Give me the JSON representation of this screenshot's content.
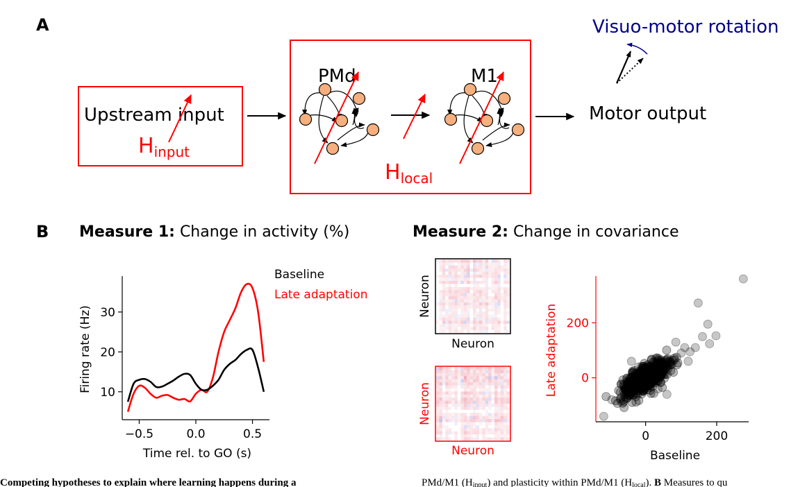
{
  "panel_a": {
    "letter": "A",
    "rotation_label": "Visuo-motor rotation",
    "upstream_label": "Upstream input",
    "h_input": {
      "main": "H",
      "sub": "input"
    },
    "pmd_label": "PMd",
    "m1_label": "M1",
    "h_local": {
      "main": "H",
      "sub": "local"
    },
    "output_label": "Motor output"
  },
  "panel_b": {
    "letter": "B",
    "measure1": {
      "bold": "Measure 1:",
      "text": " Change in activity (%)"
    },
    "measure2": {
      "bold": "Measure 2:",
      "text": " Change in covariance"
    },
    "cov_matrices": {
      "xlabel": "Neuron",
      "ylabel": "Neuron",
      "baseline_color": "#000000",
      "late_color": "#ff0000"
    }
  },
  "chart_data": [
    {
      "type": "line",
      "xlabel": "Time rel. to GO (s)",
      "ylabel": "Firing rate (Hz)",
      "xlim": [
        -0.65,
        0.65
      ],
      "ylim": [
        3,
        39
      ],
      "xticks": [
        -0.5,
        0.0,
        0.5
      ],
      "xtick_labels": [
        "−0.5",
        "0.0",
        "0.5"
      ],
      "yticks": [
        10,
        20,
        30
      ],
      "ytick_labels": [
        "10",
        "20",
        "30"
      ],
      "legend": "top-right",
      "series": [
        {
          "name": "Baseline",
          "color": "#000000",
          "x": [
            -0.6,
            -0.55,
            -0.5,
            -0.45,
            -0.4,
            -0.35,
            -0.3,
            -0.25,
            -0.2,
            -0.15,
            -0.1,
            -0.05,
            0.0,
            0.05,
            0.1,
            0.15,
            0.2,
            0.25,
            0.3,
            0.35,
            0.4,
            0.45,
            0.5,
            0.55,
            0.6
          ],
          "y": [
            7.5,
            12,
            13,
            13.2,
            12.5,
            11.2,
            11.3,
            12,
            12.8,
            13.8,
            14.5,
            14.2,
            12,
            10.5,
            10.5,
            11.5,
            13,
            15.5,
            17,
            18,
            19.5,
            20.5,
            20.5,
            16,
            10
          ]
        },
        {
          "name": "Late adaptation",
          "color": "#ff0000",
          "x": [
            -0.6,
            -0.55,
            -0.5,
            -0.45,
            -0.4,
            -0.35,
            -0.3,
            -0.25,
            -0.2,
            -0.15,
            -0.1,
            -0.05,
            0.0,
            0.05,
            0.1,
            0.15,
            0.2,
            0.25,
            0.3,
            0.35,
            0.4,
            0.45,
            0.5,
            0.55,
            0.6
          ],
          "y": [
            5,
            9.5,
            11.5,
            11,
            9.5,
            8.5,
            9,
            9.2,
            8.5,
            8,
            8.2,
            7.6,
            9.5,
            10.5,
            10,
            13.5,
            20,
            25,
            28,
            31,
            35,
            37,
            36,
            30,
            17.5
          ]
        }
      ]
    },
    {
      "type": "scatter",
      "xlabel": "Baseline",
      "ylabel": "Late adaptation",
      "xlim": [
        -140,
        290
      ],
      "ylim": [
        -160,
        370
      ],
      "xticks": [
        0,
        200
      ],
      "xtick_labels": [
        "0",
        "200"
      ],
      "yticks": [
        0,
        200
      ],
      "ytick_labels": [
        "0",
        "200"
      ],
      "point_color": "#000000",
      "outliers": [
        [
          275,
          360
        ],
        [
          148,
          272
        ],
        [
          -118,
          -140
        ],
        [
          198,
          153
        ],
        [
          180,
          124
        ],
        [
          140,
          110
        ],
        [
          125,
          95
        ],
        [
          100,
          90
        ],
        [
          175,
          195
        ],
        [
          -95,
          -80
        ],
        [
          -70,
          -85
        ],
        [
          -60,
          -35
        ],
        [
          110,
          110
        ],
        [
          85,
          130
        ],
        [
          -40,
          60
        ],
        [
          60,
          -60
        ],
        [
          -20,
          40
        ],
        [
          35,
          -40
        ],
        [
          160,
          150
        ],
        [
          120,
          60
        ]
      ],
      "cloud": {
        "count": 600,
        "x_mean": 0,
        "x_sd": 32,
        "slope": 0.75,
        "noise_sd": 22
      }
    }
  ],
  "caption": {
    "left": "Competing hypotheses to explain where learning happens during a",
    "right_pre": "PMd/M1 (H",
    "right_sub1": "input",
    "right_mid": ") and plasticity within PMd/M1 (H",
    "right_sub2": "local",
    "right_mid2": "). ",
    "right_bold": "B",
    "right_post": " Measures to qu"
  }
}
